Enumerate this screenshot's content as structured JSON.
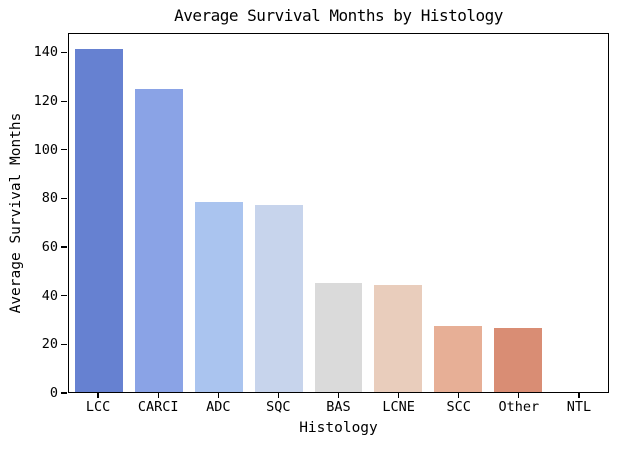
{
  "chart_data": {
    "type": "bar",
    "title": "Average Survival Months by Histology",
    "xlabel": "Histology",
    "ylabel": "Average Survival Months",
    "categories": [
      "LCC",
      "CARCI",
      "ADC",
      "SQC",
      "BAS",
      "LCNE",
      "SCC",
      "Other",
      "NTL"
    ],
    "values": [
      141,
      124.5,
      78,
      77,
      45,
      44,
      27.3,
      26.3,
      0
    ],
    "bar_colors": [
      "#6681d1",
      "#8aa3e6",
      "#aac4ef",
      "#c7d4ec",
      "#dadada",
      "#e9cdbc",
      "#e7af96",
      "#d98d74",
      "#c96a55"
    ],
    "ylim": [
      0,
      148
    ],
    "yticks": [
      0,
      20,
      40,
      60,
      80,
      100,
      120,
      140
    ],
    "grid": false,
    "legend": "none",
    "frame_color": "#000000",
    "text_color": "#000000",
    "background": "#ffffff"
  }
}
